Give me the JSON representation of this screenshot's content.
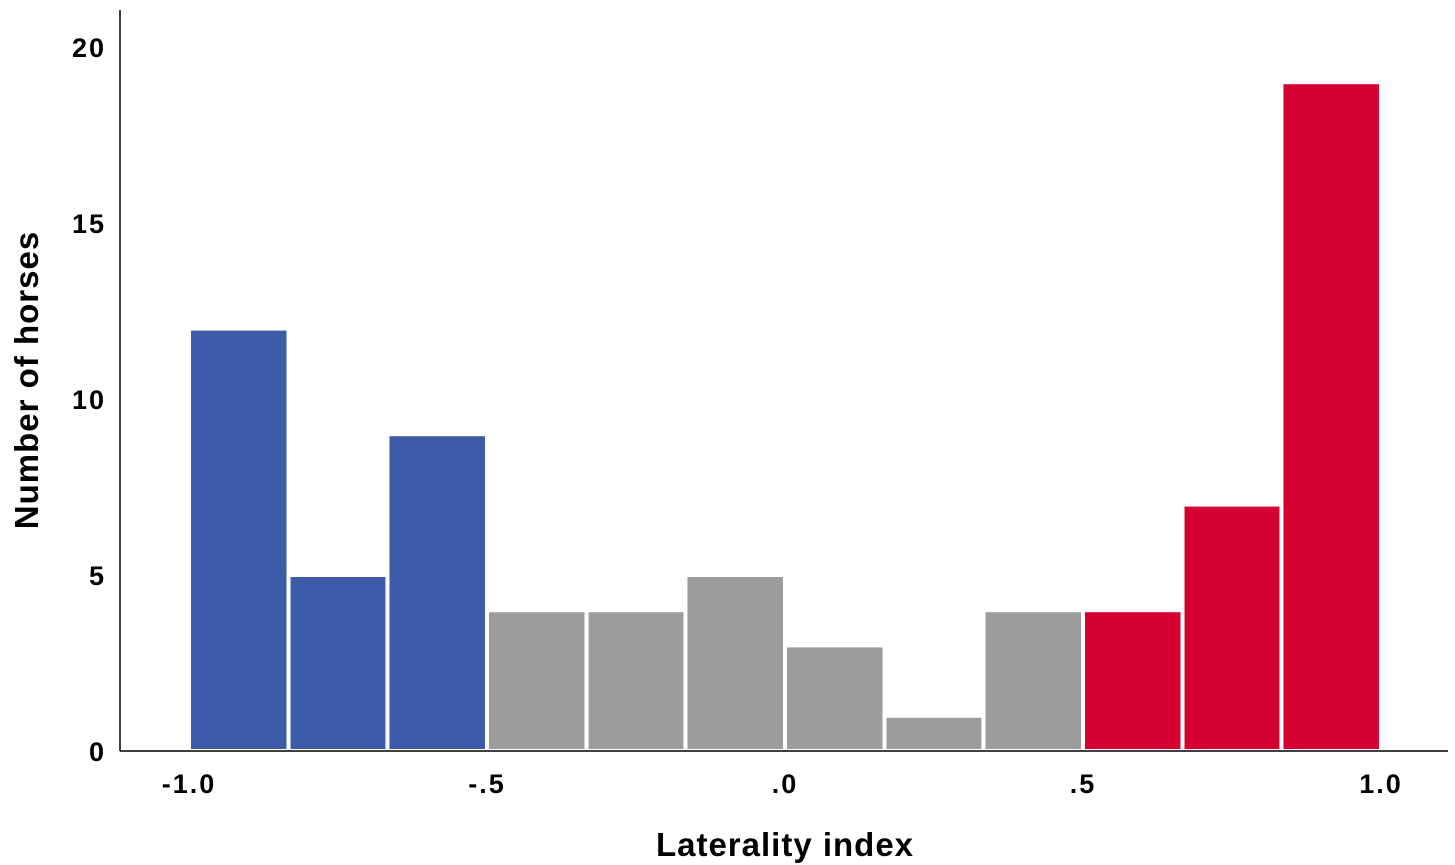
{
  "chart_data": {
    "type": "bar",
    "subtype": "histogram",
    "xlabel": "Laterality index",
    "ylabel": "Number of horses",
    "xlim": [
      -1.15,
      1.15
    ],
    "ylim": [
      0,
      21
    ],
    "xticks": [
      {
        "value": -1.0,
        "label": "-1.0"
      },
      {
        "value": -0.5,
        "label": "-.5"
      },
      {
        "value": 0.0,
        "label": ".0"
      },
      {
        "value": 0.5,
        "label": ".5"
      },
      {
        "value": 1.0,
        "label": "1.0"
      }
    ],
    "yticks": [
      {
        "value": 0,
        "label": "0"
      },
      {
        "value": 5,
        "label": "5"
      },
      {
        "value": 10,
        "label": "10"
      },
      {
        "value": 15,
        "label": "15"
      },
      {
        "value": 20,
        "label": "20"
      }
    ],
    "bin_width": 0.1667,
    "bins": [
      {
        "start": -1.0,
        "end": -0.833,
        "value": 12,
        "color": "#3e5ba9"
      },
      {
        "start": -0.833,
        "end": -0.667,
        "value": 5,
        "color": "#3e5ba9"
      },
      {
        "start": -0.667,
        "end": -0.5,
        "value": 9,
        "color": "#3e5ba9"
      },
      {
        "start": -0.5,
        "end": -0.333,
        "value": 4,
        "color": "#9c9c9c"
      },
      {
        "start": -0.333,
        "end": -0.167,
        "value": 4,
        "color": "#9c9c9c"
      },
      {
        "start": -0.167,
        "end": 0.0,
        "value": 5,
        "color": "#9c9c9c"
      },
      {
        "start": 0.0,
        "end": 0.167,
        "value": 3,
        "color": "#9c9c9c"
      },
      {
        "start": 0.167,
        "end": 0.333,
        "value": 1,
        "color": "#9c9c9c"
      },
      {
        "start": 0.333,
        "end": 0.5,
        "value": 4,
        "color": "#9c9c9c"
      },
      {
        "start": 0.5,
        "end": 0.667,
        "value": 4,
        "color": "#d50032"
      },
      {
        "start": 0.667,
        "end": 0.833,
        "value": 7,
        "color": "#d50032"
      },
      {
        "start": 0.833,
        "end": 1.0,
        "value": 19,
        "color": "#d50032"
      }
    ],
    "grid": false
  }
}
